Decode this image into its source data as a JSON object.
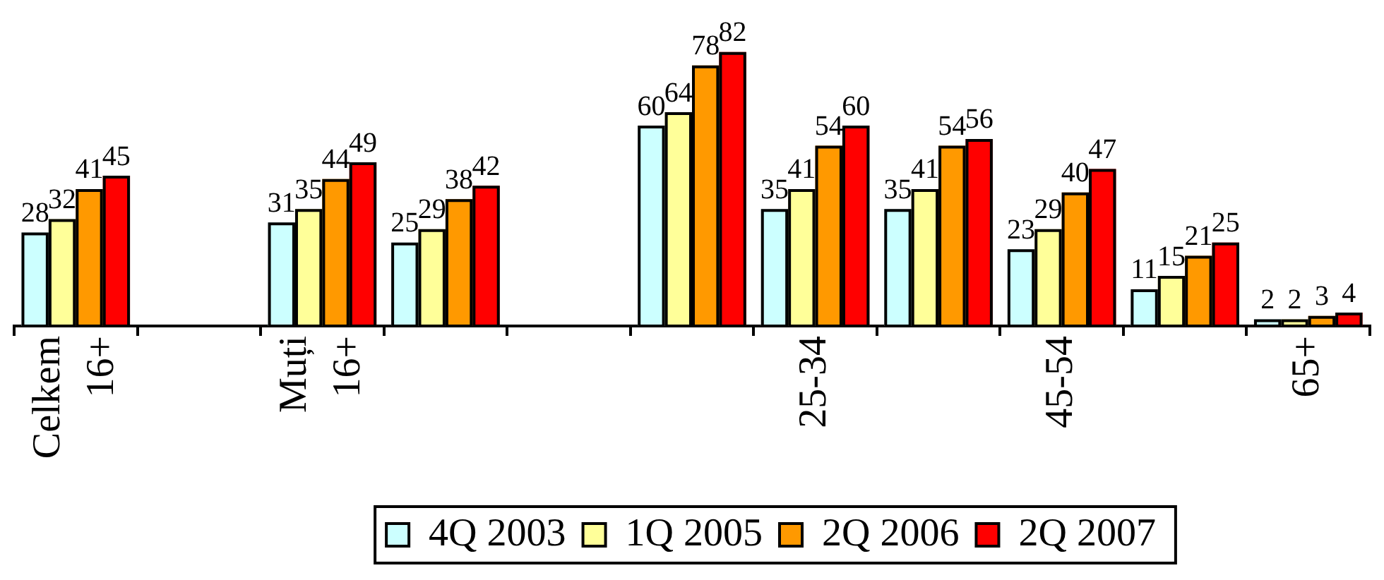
{
  "chart_data": {
    "type": "bar",
    "categories": [
      "Celkem 16+",
      null,
      "Muți 16+",
      null,
      null,
      null,
      "25-34",
      null,
      "45-54",
      null,
      "65+"
    ],
    "series": [
      {
        "name": "4Q 2003",
        "color": "#ccffff",
        "values": [
          28,
          null,
          31,
          25,
          null,
          60,
          35,
          35,
          23,
          11,
          2
        ]
      },
      {
        "name": "1Q 2005",
        "color": "#ffff99",
        "values": [
          32,
          null,
          35,
          29,
          null,
          64,
          41,
          41,
          29,
          15,
          2
        ]
      },
      {
        "name": "2Q 2006",
        "color": "#ff9900",
        "values": [
          41,
          null,
          44,
          38,
          null,
          78,
          54,
          54,
          40,
          21,
          3
        ]
      },
      {
        "name": "2Q 2007",
        "color": "#ff0000",
        "values": [
          45,
          null,
          49,
          42,
          null,
          82,
          60,
          56,
          47,
          25,
          4
        ]
      }
    ],
    "data_labels": true,
    "legend": "bottom",
    "tick_labels": "x"
  }
}
